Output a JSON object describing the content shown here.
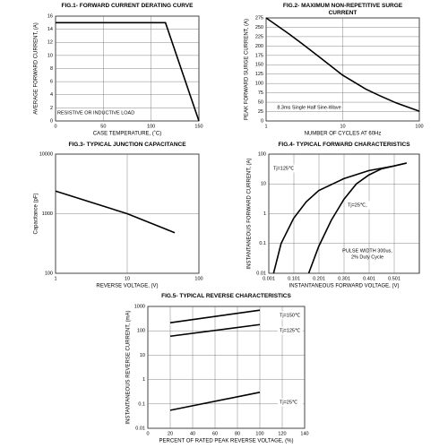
{
  "chart_data": [
    {
      "type": "line",
      "title": "FIG.1- FORWARD CURRENT DERATING CURVE",
      "xlabel": "CASE TEMPERATURE, (˚C)",
      "ylabel": "AVERAGE FORWARD CURRENT, (A)",
      "xscale": "linear",
      "yscale": "linear",
      "xlim": [
        0,
        150
      ],
      "ylim": [
        0,
        16
      ],
      "xticks": [
        0,
        50,
        100,
        150
      ],
      "yticks": [
        0,
        2,
        4,
        6,
        8,
        10,
        12,
        14,
        16
      ],
      "grid": true,
      "series": [
        {
          "color": "#000000",
          "x": [
            0,
            115,
            150
          ],
          "values": [
            15,
            15,
            0
          ]
        }
      ],
      "annotations": [
        "RESISTIVE OR INDUCTIVE LOAD"
      ]
    },
    {
      "type": "line",
      "title": "FIG.2- MAXIMUM NON-REPETITIVE SURGE CURRENT",
      "xlabel": "NUMBER OF CYCLES AT 60Hz",
      "ylabel": "PEAK FORWARD SURGE CURRENT, (A)",
      "xscale": "log",
      "yscale": "linear",
      "xlim": [
        1,
        100
      ],
      "ylim": [
        0,
        275
      ],
      "xticks": [
        1,
        10,
        100
      ],
      "yticks": [
        0,
        25,
        50,
        75,
        100,
        125,
        150,
        175,
        200,
        225,
        250,
        275
      ],
      "grid": true,
      "series": [
        {
          "color": "#000000",
          "x": [
            1,
            2,
            3,
            5,
            10,
            20,
            30,
            50,
            100
          ],
          "values": [
            275,
            232,
            205,
            170,
            122,
            85,
            68,
            48,
            26
          ]
        }
      ],
      "annotations": [
        "8.3ms Single Half Sine-Wave"
      ]
    },
    {
      "type": "line",
      "title": "FIG.3- TYPICAL JUNCTION CAPACITANCE",
      "xlabel": "REVERSE VOLTAGE, (V)",
      "ylabel": "Capacitance (pF)",
      "xscale": "log",
      "yscale": "log",
      "xlim": [
        1,
        100
      ],
      "ylim": [
        100,
        10000
      ],
      "xticks": [
        1,
        10,
        100
      ],
      "yticks": [
        100,
        1000,
        10000
      ],
      "grid": true,
      "series": [
        {
          "color": "#000000",
          "x": [
            1,
            5,
            10,
            46
          ],
          "values": [
            2400,
            1300,
            1000,
            480
          ]
        }
      ],
      "annotations": []
    },
    {
      "type": "line",
      "title": "FIG.4- TYPICAL FORWARD CHARACTERISTICS",
      "xlabel": "INSTANTANEOUS FORWARD VOLTAGE, (V)",
      "ylabel": "INSTANTANEOUS FORWARD CURRENT, (A)",
      "xscale": "linear",
      "yscale": "log",
      "xlim": [
        0.001,
        0.601
      ],
      "ylim": [
        0.01,
        100
      ],
      "xticks": [
        0.001,
        0.101,
        0.201,
        0.301,
        0.401,
        0.501
      ],
      "yticks": [
        0.01,
        0.1,
        1,
        10,
        100
      ],
      "grid": true,
      "series": [
        {
          "name": "Tj=125℃",
          "color": "#000000",
          "x": [
            0.02,
            0.05,
            0.1,
            0.15,
            0.2,
            0.3,
            0.4,
            0.5,
            0.55
          ],
          "values": [
            0.01,
            0.1,
            0.7,
            2.5,
            6,
            15,
            28,
            40,
            50
          ]
        },
        {
          "name": "Tj=25℃,",
          "color": "#000000",
          "x": [
            0.16,
            0.2,
            0.25,
            0.3,
            0.35,
            0.4,
            0.45,
            0.55
          ],
          "values": [
            0.01,
            0.08,
            0.6,
            3,
            10,
            20,
            32,
            50
          ]
        }
      ],
      "annotations": [
        "PULSE WIDTH 300us,",
        "2% Duty Cycle"
      ]
    },
    {
      "type": "line",
      "title": "FIG.5- TYPICAL REVERSE CHARACTERISTICS",
      "xlabel": "PERCENT OF RATED PEAK REVERSE VOLTAGE, (%)",
      "ylabel": "INSTANTANEOUS REVERSE CURRENT, (mA)",
      "xscale": "linear",
      "yscale": "log",
      "xlim": [
        0,
        140
      ],
      "ylim": [
        0.01,
        1000
      ],
      "xticks": [
        0,
        20,
        40,
        60,
        80,
        100,
        120,
        140
      ],
      "yticks": [
        0.01,
        0.1,
        1,
        10,
        100,
        1000
      ],
      "grid": true,
      "series": [
        {
          "name": "Tj=150℃",
          "color": "#000000",
          "x": [
            20,
            100
          ],
          "values": [
            215,
            700
          ]
        },
        {
          "name": "Tj=125℃",
          "color": "#000000",
          "x": [
            20,
            100
          ],
          "values": [
            60,
            180
          ]
        },
        {
          "name": "Tj=25℃",
          "color": "#000000",
          "x": [
            20,
            100
          ],
          "values": [
            0.055,
            0.3
          ]
        }
      ],
      "annotations": []
    }
  ]
}
